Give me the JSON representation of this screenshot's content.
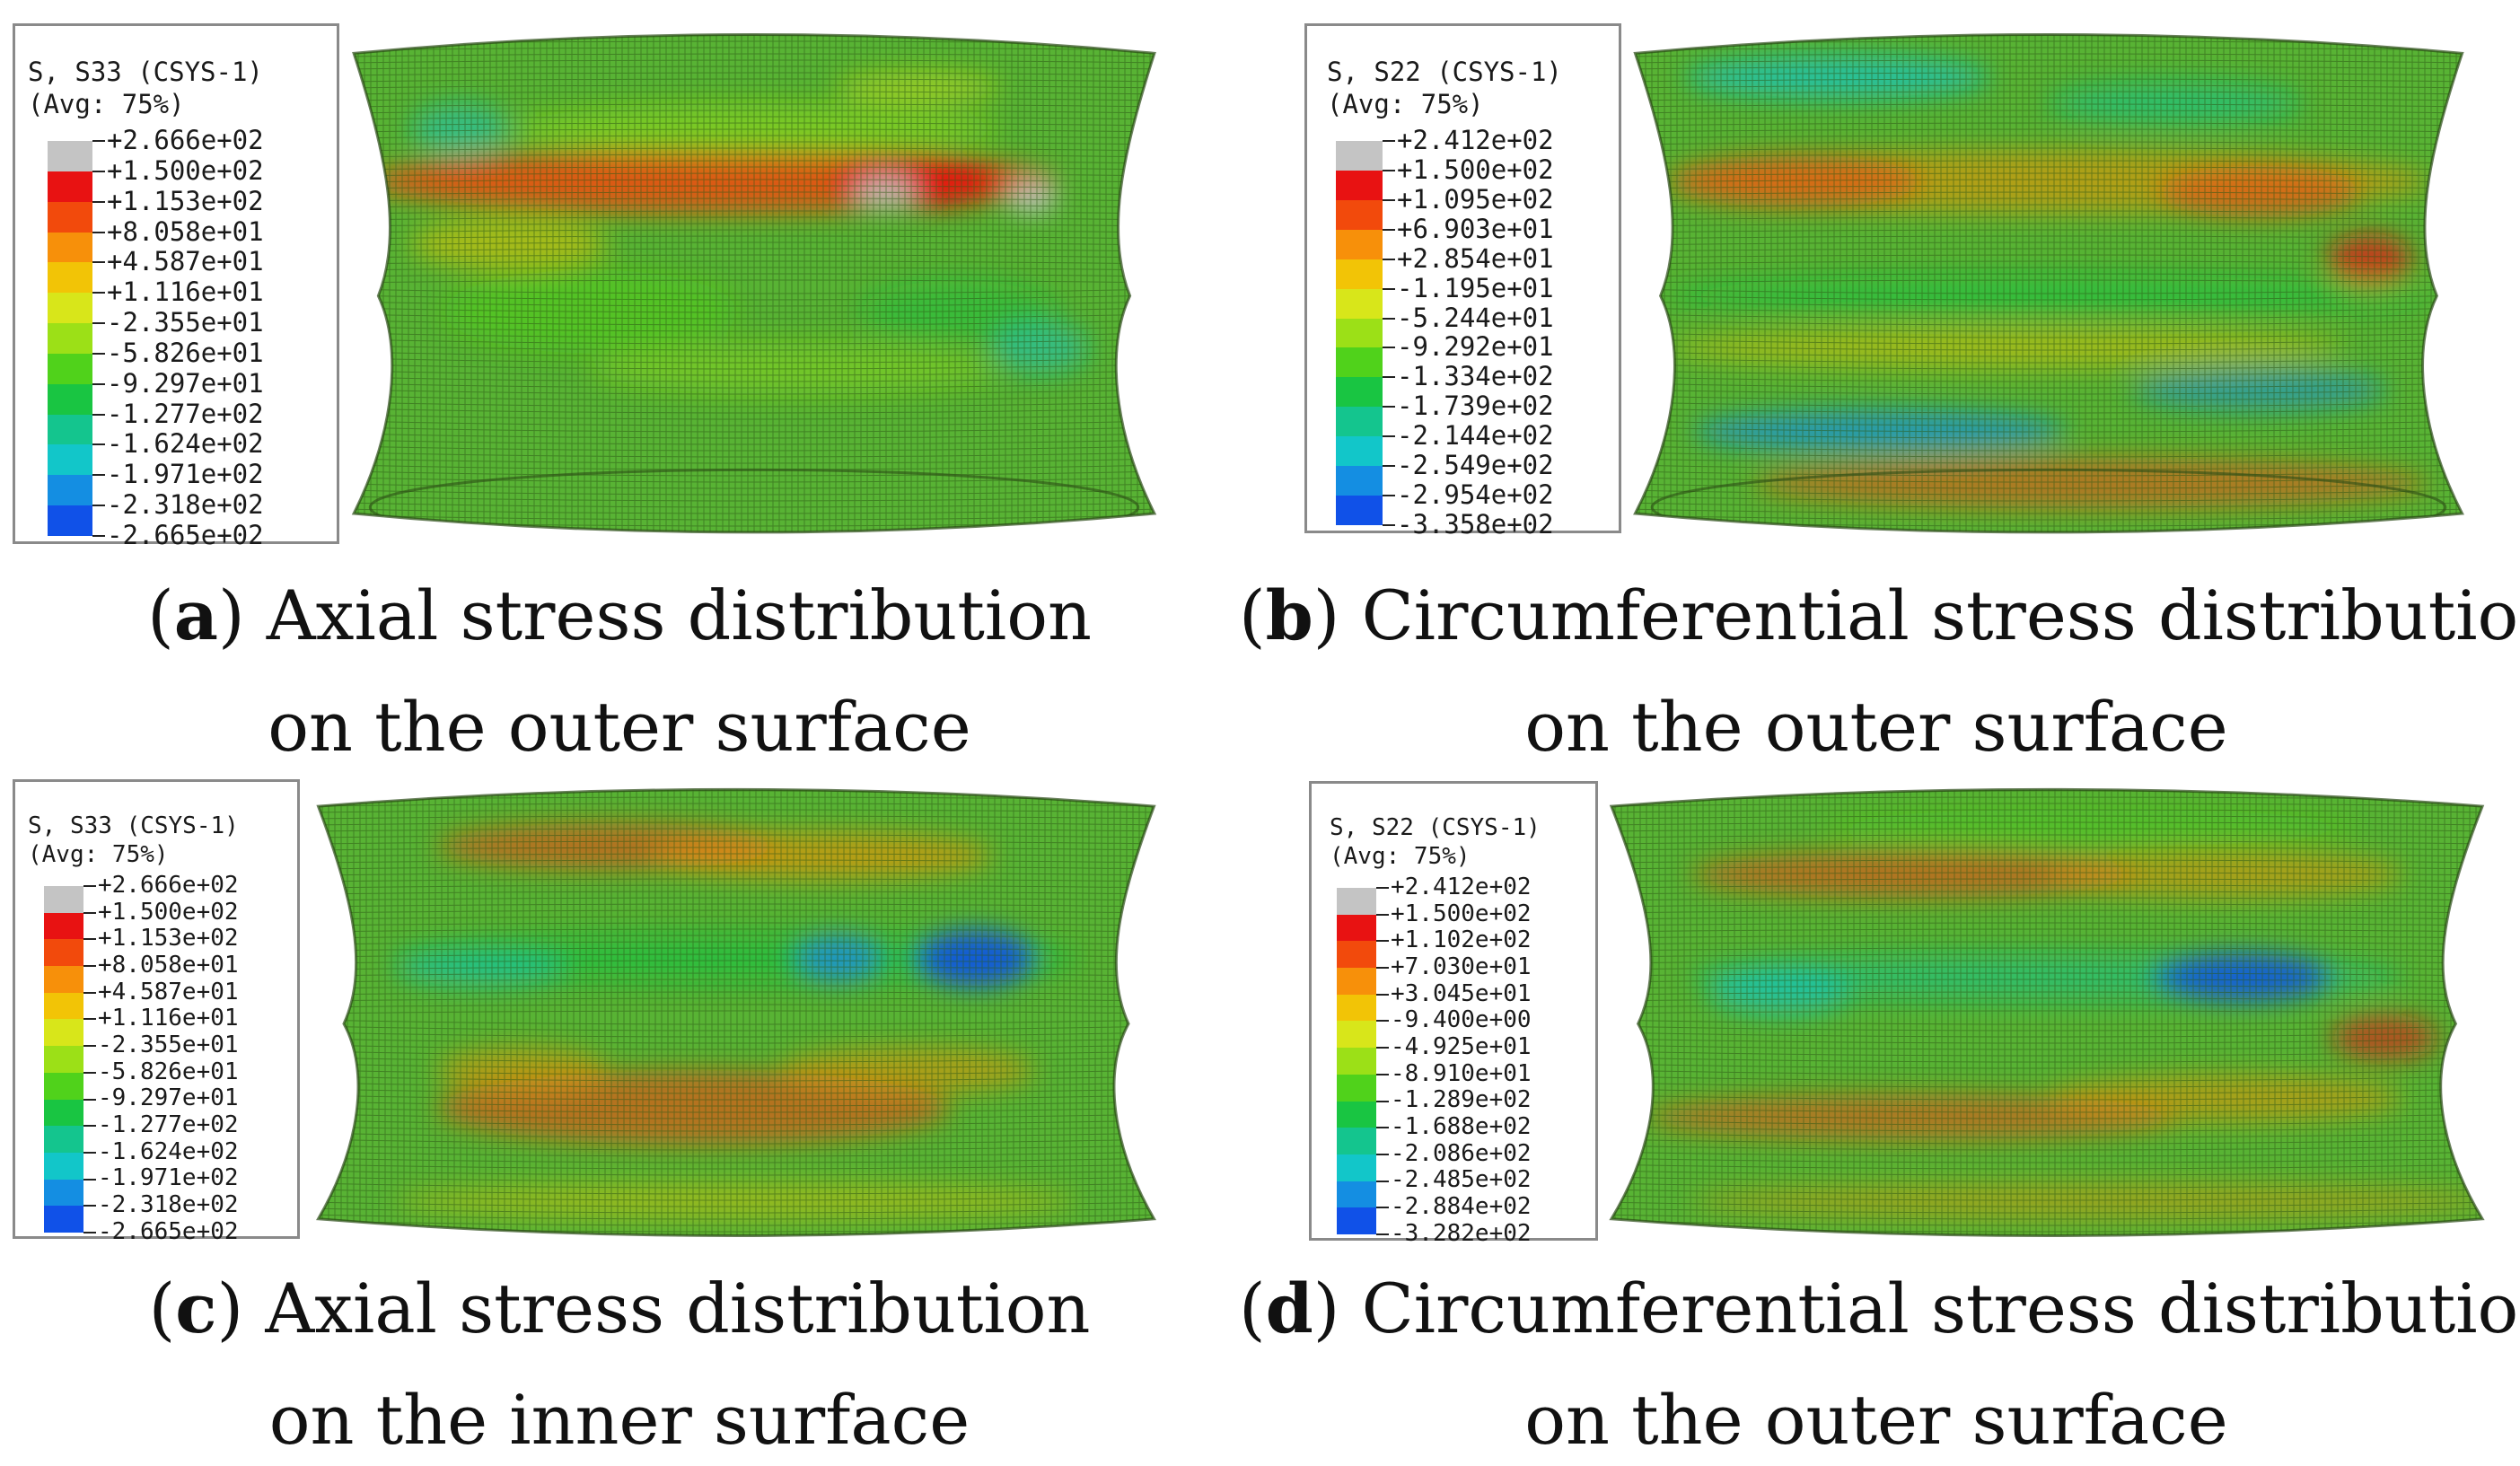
{
  "colors": {
    "legend": [
      "#c4c4c4",
      "#e81212",
      "#f24a0c",
      "#f7900a",
      "#f2c406",
      "#d8e61a",
      "#9ce017",
      "#50d21b",
      "#19c542",
      "#14c58e",
      "#12c6c9",
      "#148ee2",
      "#1051e8",
      "#0b1ae4"
    ],
    "surface_base": "#58b334",
    "mesh_line": "#2f5a17"
  },
  "panels": [
    {
      "legend": {
        "title_line1": "S, S33 (CSYS-1)",
        "title_line2": "(Avg: 75%)",
        "values": [
          "+2.666e+02",
          "+1.500e+02",
          "+1.153e+02",
          "+8.058e+01",
          "+4.587e+01",
          "+1.116e+01",
          "-2.355e+01",
          "-5.826e+01",
          "-9.297e+01",
          "-1.277e+02",
          "-1.624e+02",
          "-1.971e+02",
          "-2.318e+02",
          "-2.665e+02"
        ]
      },
      "caption": {
        "letter": "a",
        "text1": "Axial stress distribution",
        "text2": "on the outer surface"
      }
    },
    {
      "legend": {
        "title_line1": "S, S22 (CSYS-1)",
        "title_line2": "(Avg: 75%)",
        "values": [
          "+2.412e+02",
          "+1.500e+02",
          "+1.095e+02",
          "+6.903e+01",
          "+2.854e+01",
          "-1.195e+01",
          "-5.244e+01",
          "-9.292e+01",
          "-1.334e+02",
          "-1.739e+02",
          "-2.144e+02",
          "-2.549e+02",
          "-2.954e+02",
          "-3.358e+02"
        ]
      },
      "caption": {
        "letter": "b",
        "text1": "Circumferential stress distribution",
        "text2": "on the outer surface"
      }
    },
    {
      "legend": {
        "title_line1": "S, S33 (CSYS-1)",
        "title_line2": "(Avg: 75%)",
        "values": [
          "+2.666e+02",
          "+1.500e+02",
          "+1.153e+02",
          "+8.058e+01",
          "+4.587e+01",
          "+1.116e+01",
          "-2.355e+01",
          "-5.826e+01",
          "-9.297e+01",
          "-1.277e+02",
          "-1.624e+02",
          "-1.971e+02",
          "-2.318e+02",
          "-2.665e+02"
        ]
      },
      "caption": {
        "letter": "c",
        "text1": "Axial stress distribution",
        "text2": "on the inner surface"
      }
    },
    {
      "legend": {
        "title_line1": "S, S22 (CSYS-1)",
        "title_line2": "(Avg: 75%)",
        "values": [
          "+2.412e+02",
          "+1.500e+02",
          "+1.102e+02",
          "+7.030e+01",
          "+3.045e+01",
          "-9.400e+00",
          "-4.925e+01",
          "-8.910e+01",
          "-1.289e+02",
          "-1.688e+02",
          "-2.086e+02",
          "-2.485e+02",
          "-2.884e+02",
          "-3.282e+02"
        ]
      },
      "caption": {
        "letter": "d",
        "text1": "Circumferential stress distribution",
        "text2": "on the outer surface"
      }
    }
  ]
}
